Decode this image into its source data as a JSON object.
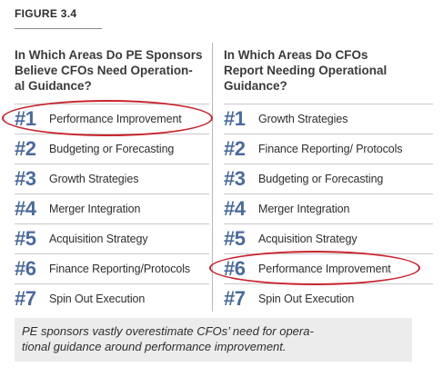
{
  "figure_label": "FIGURE 3.4",
  "left_column": {
    "heading_lines": [
      "In Which Areas Do PE Sponsors",
      "Believe CFOs Need Operation-",
      "al Guidance?"
    ],
    "items": [
      {
        "rank": "#1",
        "label": "Performance Improvement"
      },
      {
        "rank": "#2",
        "label": "Budgeting or Forecasting"
      },
      {
        "rank": "#3",
        "label": "Growth Strategies"
      },
      {
        "rank": "#4",
        "label": "Merger Integration"
      },
      {
        "rank": "#5",
        "label": "Acquisition Strategy"
      },
      {
        "rank": "#6",
        "label": "Finance Reporting/Protocols"
      },
      {
        "rank": "#7",
        "label": "Spin Out Execution"
      }
    ]
  },
  "right_column": {
    "heading_lines": [
      "In Which Areas Do CFOs",
      "Report Needing Operational",
      "Guidance?"
    ],
    "items": [
      {
        "rank": "#1",
        "label": "Growth Strategies"
      },
      {
        "rank": "#2",
        "label": "Finance Reporting/ Protocols"
      },
      {
        "rank": "#3",
        "label": "Budgeting or Forecasting"
      },
      {
        "rank": "#4",
        "label": "Merger Integration"
      },
      {
        "rank": "#5",
        "label": "Acquisition Strategy"
      },
      {
        "rank": "#6",
        "label": "Performance Improvement"
      },
      {
        "rank": "#7",
        "label": "Spin Out Execution"
      }
    ]
  },
  "footer_lines": [
    "PE sponsors vastly overestimate CFOs’ need for opera-",
    "tional guidance around performance improvement."
  ],
  "colors": {
    "rank_blue": "#4a6a9c",
    "highlight_red": "#c8242d",
    "footer_bg": "#ececec"
  }
}
